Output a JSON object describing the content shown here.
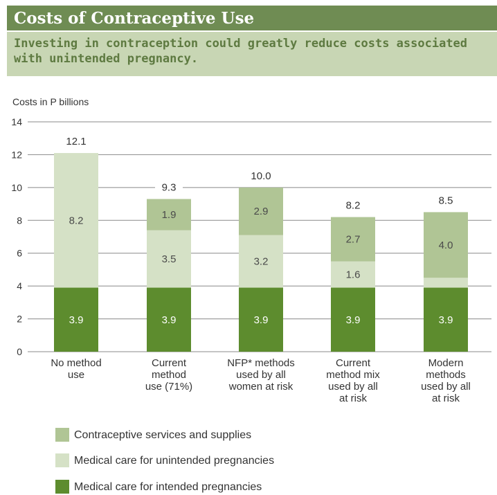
{
  "header": {
    "title": "Costs of Contraceptive Use",
    "subtitle": "Investing in contraception could greatly reduce costs associated with unintended pregnancy."
  },
  "colors": {
    "contraceptive": "#b0c595",
    "unintended": "#d5e1c6",
    "intended": "#5d8c2e",
    "grid": "#888888",
    "axis_text": "#333333",
    "bar_text": "#4a4a4a"
  },
  "chart_data": {
    "type": "bar",
    "stacked": true,
    "ylabel": "Costs in P billions",
    "ylim": [
      0,
      14
    ],
    "yticks": [
      0,
      2,
      4,
      6,
      8,
      10,
      12,
      14
    ],
    "categories": [
      [
        "No method",
        "use"
      ],
      [
        "Current",
        "method",
        "use (71%)"
      ],
      [
        "NFP* methods",
        "used by all",
        "women at risk"
      ],
      [
        "Current",
        "method mix",
        "used by all",
        "at risk"
      ],
      [
        "Modern",
        "methods",
        "used by all",
        "at risk"
      ]
    ],
    "series": [
      {
        "name": "Medical care for intended pregnancies",
        "key": "intended",
        "values": [
          3.9,
          3.9,
          3.9,
          3.9,
          3.9
        ],
        "labels": [
          "3.9",
          "3.9",
          "3.9",
          "3.9",
          "3.9"
        ]
      },
      {
        "name": "Medical care for unintended pregnancies",
        "key": "unintended",
        "values": [
          8.2,
          3.5,
          3.2,
          1.6,
          0.6
        ],
        "labels": [
          "8.2",
          "3.5",
          "3.2",
          "1.6",
          ""
        ]
      },
      {
        "name": "Contraceptive services and supplies",
        "key": "contraceptive",
        "values": [
          0,
          1.9,
          2.9,
          2.7,
          4.0
        ],
        "labels": [
          "",
          "1.9",
          "2.9",
          "2.7",
          "4.0"
        ]
      }
    ],
    "totals": [
      "12.1",
      "9.3",
      "10.0",
      "8.2",
      "8.5"
    ],
    "legend": [
      {
        "label": "Contraceptive services and supplies",
        "key": "contraceptive"
      },
      {
        "label": "Medical care for unintended pregnancies",
        "key": "unintended"
      },
      {
        "label": "Medical care for intended pregnancies",
        "key": "intended"
      }
    ],
    "grid": true,
    "legend_position": "bottom-left"
  }
}
